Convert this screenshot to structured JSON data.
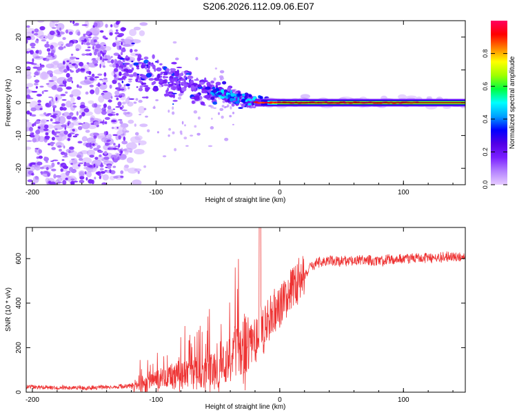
{
  "title": "S206.2026.112.09.06.E07",
  "chart_data": [
    {
      "type": "heatmap",
      "xlabel": "Height of straight line (km)",
      "ylabel": "Frequency (Hz)",
      "xlim": [
        -205,
        150
      ],
      "ylim": [
        -25,
        25
      ],
      "xticks": [
        -200,
        -100,
        0,
        100
      ],
      "yticks": [
        -20,
        -10,
        0,
        10,
        20
      ],
      "colorbar": {
        "label": "Normalized spectral amplitude",
        "range": [
          0,
          1
        ],
        "ticks": [
          "0.0",
          "0.2",
          "0.4",
          "0.6",
          "0.8"
        ],
        "tick_values": [
          0,
          0.2,
          0.4,
          0.6,
          0.8
        ],
        "colormap": [
          "#e6ccff",
          "#b380ff",
          "#7a1fff",
          "#5200e6",
          "#0000ff",
          "#00a0ff",
          "#00ffff",
          "#00ff40",
          "#a0ff00",
          "#ffff00",
          "#ff8000",
          "#ff0000",
          "#ff0060"
        ]
      },
      "description_points": {
        "tone_center_freq_hz": 0,
        "tone_start_km": -30,
        "noise_region_km": [
          -205,
          -130
        ]
      }
    },
    {
      "type": "line",
      "xlabel": "Height of straight line (km)",
      "ylabel": "SNR (10 * v/v)",
      "xlim": [
        -205,
        150
      ],
      "ylim": [
        0,
        740
      ],
      "xticks": [
        -200,
        -100,
        0,
        100
      ],
      "yticks": [
        0,
        200,
        400,
        600
      ],
      "line_color": "#ee3333",
      "series": [
        {
          "name": "SNR",
          "x": [
            -205,
            -180,
            -150,
            -130,
            -115,
            -105,
            -95,
            -85,
            -75,
            -65,
            -55,
            -45,
            -35,
            -28,
            -20,
            -16,
            -12,
            -8,
            -4,
            0,
            4,
            8,
            12,
            16,
            20,
            25,
            30,
            35,
            40,
            50,
            60,
            80,
            100,
            120,
            150
          ],
          "values": [
            25,
            20,
            20,
            25,
            30,
            45,
            60,
            70,
            80,
            85,
            100,
            130,
            160,
            190,
            230,
            260,
            300,
            340,
            360,
            380,
            420,
            450,
            480,
            500,
            520,
            560,
            580,
            585,
            590,
            590,
            595,
            590,
            600,
            605,
            610
          ]
        }
      ],
      "spike": {
        "x": -16,
        "value": 740
      }
    }
  ]
}
